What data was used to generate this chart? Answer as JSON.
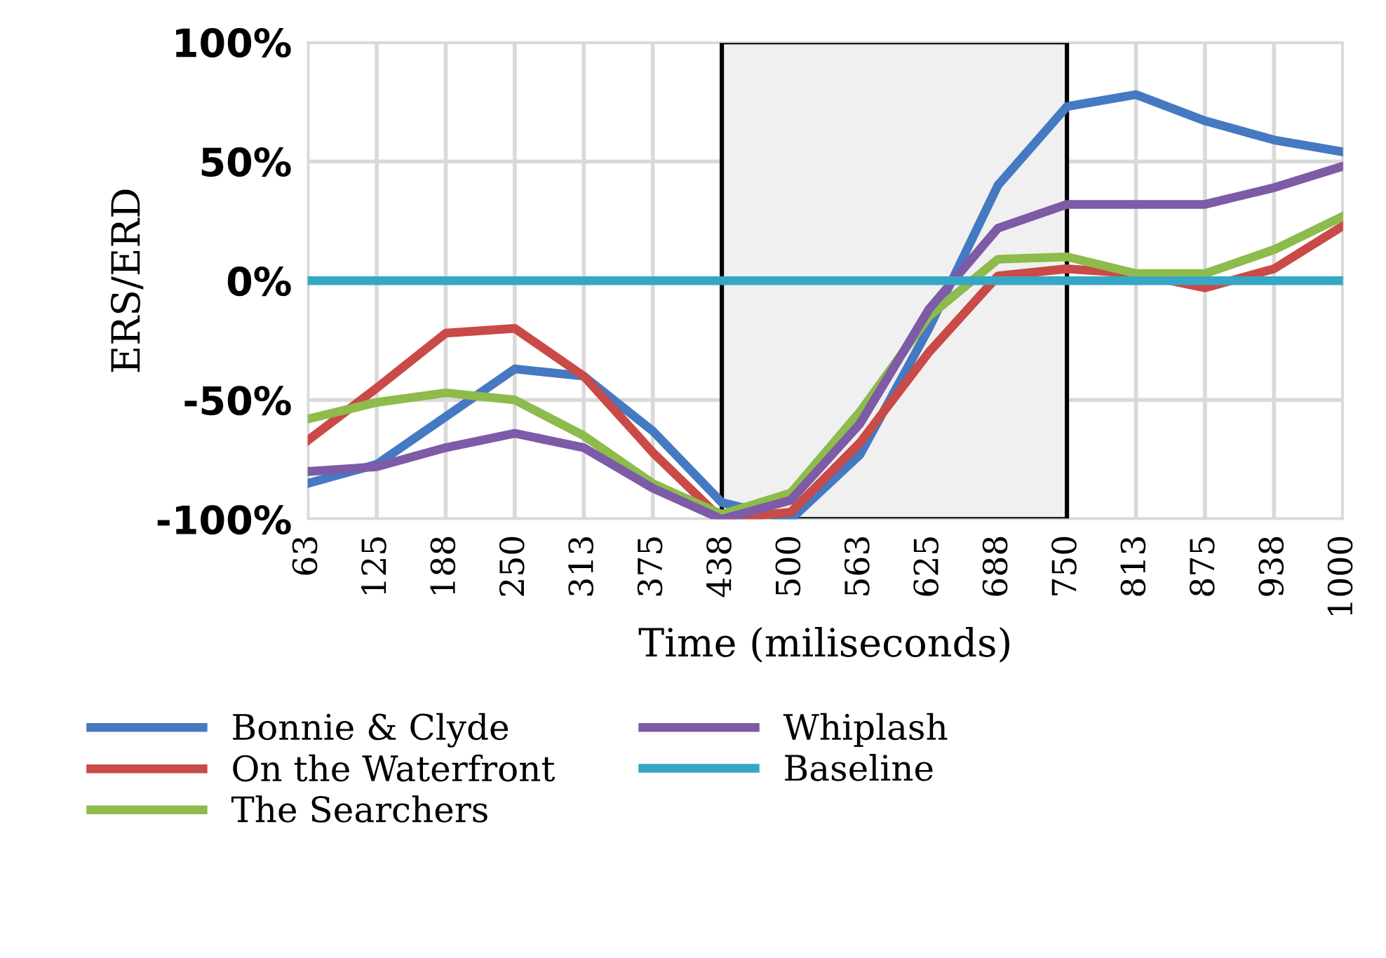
{
  "chart_data": {
    "type": "line",
    "xlabel": "Time (miliseconds)",
    "ylabel": "ERS/ERD",
    "categories": [
      "63",
      "125",
      "188",
      "250",
      "313",
      "375",
      "438",
      "500",
      "563",
      "625",
      "688",
      "750",
      "813",
      "875",
      "938",
      "1000"
    ],
    "series": [
      {
        "name": "Bonnie & Clyde",
        "color": "#4579c2",
        "values": [
          -85,
          -77,
          -57,
          -37,
          -40,
          -63,
          -93,
          -100,
          -73,
          -20,
          40,
          73,
          78,
          67,
          59,
          54
        ]
      },
      {
        "name": "On the Waterfront",
        "color": "#c94a46",
        "values": [
          -67,
          -45,
          -22,
          -20,
          -40,
          -72,
          -100,
          -97,
          -68,
          -30,
          2,
          5,
          3,
          -3,
          5,
          23
        ]
      },
      {
        "name": "The Searchers",
        "color": "#8dbb4c",
        "values": [
          -58,
          -51,
          -47,
          -50,
          -65,
          -85,
          -98,
          -89,
          -55,
          -15,
          9,
          10,
          3,
          3,
          13,
          27
        ]
      },
      {
        "name": "Whiplash",
        "color": "#7d5ba6",
        "values": [
          -80,
          -78,
          -70,
          -64,
          -70,
          -87,
          -100,
          -92,
          -60,
          -12,
          22,
          32,
          32,
          32,
          39,
          48
        ]
      },
      {
        "name": "Baseline",
        "color": "#35a7c5",
        "values": [
          0,
          0,
          0,
          0,
          0,
          0,
          0,
          0,
          0,
          0,
          0,
          0,
          0,
          0,
          0,
          0
        ]
      }
    ],
    "ylim": [
      -100,
      100
    ],
    "yticks": [
      {
        "value": -100,
        "label": "-100%"
      },
      {
        "value": -50,
        "label": "-50%"
      },
      {
        "value": 0,
        "label": "0%"
      },
      {
        "value": 50,
        "label": "50%"
      },
      {
        "value": 100,
        "label": "100%"
      }
    ],
    "bands": [
      {
        "axis": "x",
        "from": "438",
        "to": "750",
        "color": "#f0f0f0"
      }
    ],
    "grid": true,
    "legend": "bottom",
    "line_style": "solid",
    "marker": "none"
  }
}
